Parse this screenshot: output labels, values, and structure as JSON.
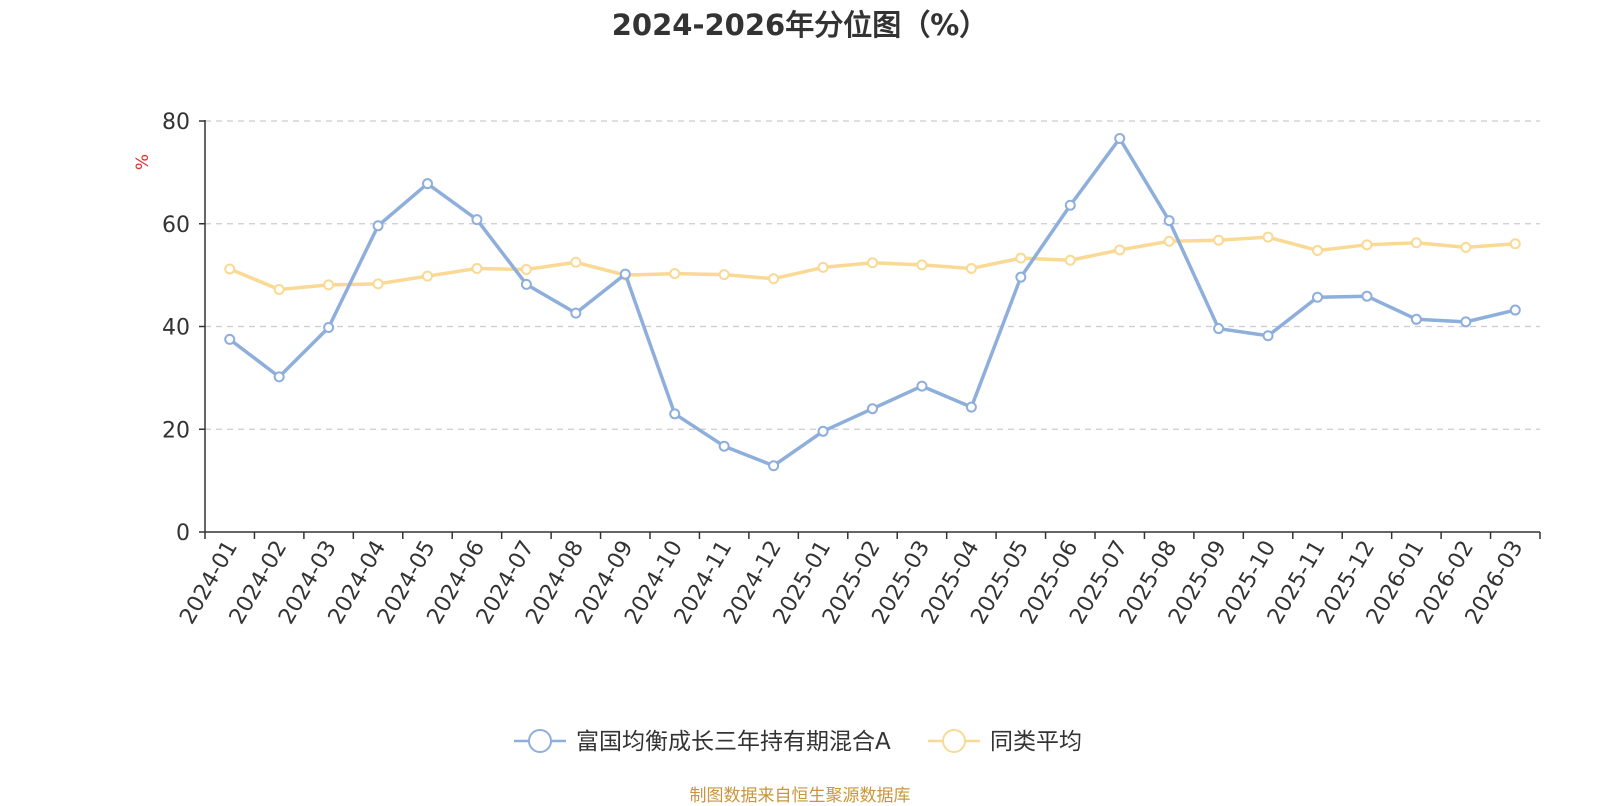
{
  "chart_data": {
    "type": "line",
    "title": "2024-2026年分位图（%）",
    "xlabel": "",
    "ylabel": "%",
    "ylim": [
      0,
      80
    ],
    "yticks": [
      0,
      20,
      40,
      60,
      80
    ],
    "grid": true,
    "legend_position": "bottom",
    "categories": [
      "2024-01",
      "2024-02",
      "2024-03",
      "2024-04",
      "2024-05",
      "2024-06",
      "2024-07",
      "2024-08",
      "2024-09",
      "2024-10",
      "2024-11",
      "2024-12",
      "2025-01",
      "2025-02",
      "2025-03",
      "2025-04",
      "2025-05",
      "2025-06",
      "2025-07",
      "2025-08",
      "2025-09",
      "2025-10",
      "2025-11",
      "2025-12",
      "2026-01",
      "2026-02",
      "2026-03"
    ],
    "series": [
      {
        "name": "富国均衡成长三年持有期混合A",
        "color": "#8eaedb",
        "values": [
          37.5,
          30.2,
          39.8,
          59.6,
          67.8,
          60.8,
          48.2,
          42.6,
          50.2,
          23.0,
          16.7,
          12.9,
          19.6,
          24.0,
          28.4,
          24.3,
          49.6,
          63.6,
          76.6,
          60.6,
          39.6,
          38.2,
          45.7,
          45.9,
          41.4,
          40.9,
          43.2
        ]
      },
      {
        "name": "同类平均",
        "color": "#f9d994",
        "values": [
          51.2,
          47.2,
          48.1,
          48.3,
          49.8,
          51.3,
          51.1,
          52.5,
          50.0,
          50.3,
          50.1,
          49.3,
          51.5,
          52.4,
          52.0,
          51.3,
          53.3,
          52.9,
          54.9,
          56.6,
          56.8,
          57.4,
          54.8,
          55.9,
          56.3,
          55.4,
          56.1
        ]
      }
    ]
  },
  "footer": {
    "source": "制图数据来自恒生聚源数据库"
  }
}
